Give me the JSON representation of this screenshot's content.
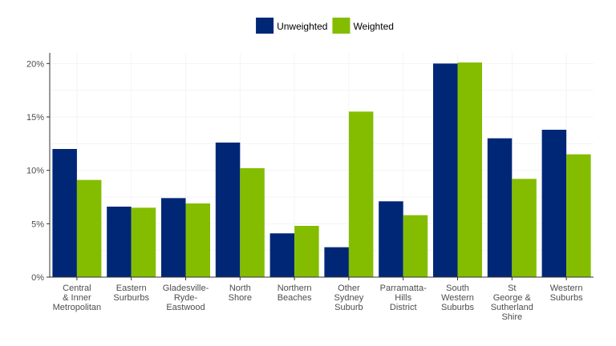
{
  "chart_data": {
    "type": "bar",
    "title": "",
    "xlabel": "",
    "ylabel": "",
    "ylim": [
      0,
      21
    ],
    "yticks": [
      0,
      5,
      10,
      15,
      20
    ],
    "ytick_labels": [
      "0%",
      "5%",
      "10%",
      "15%",
      "20%"
    ],
    "grid": true,
    "legend_position": "top",
    "categories": [
      [
        "Central",
        "& Inner",
        "Metropolitan"
      ],
      [
        "Eastern",
        "Surburbs"
      ],
      [
        "Gladesville-",
        "Ryde-",
        "Eastwood"
      ],
      [
        "North",
        "Shore"
      ],
      [
        "Northern",
        "Beaches"
      ],
      [
        "Other",
        "Sydney",
        "Suburb"
      ],
      [
        "Parramatta-",
        "Hills",
        "District"
      ],
      [
        "South",
        "Western",
        "Suburbs"
      ],
      [
        "St",
        "George &",
        "Sutherland",
        "Shire"
      ],
      [
        "Western",
        "Suburbs"
      ]
    ],
    "series": [
      {
        "name": "Unweighted",
        "color": "#002776",
        "values": [
          12.0,
          6.6,
          7.4,
          12.6,
          4.1,
          2.8,
          7.1,
          20.0,
          13.0,
          13.8
        ]
      },
      {
        "name": "Weighted",
        "color": "#84bd00",
        "values": [
          9.1,
          6.5,
          6.9,
          10.2,
          4.8,
          15.5,
          5.8,
          20.1,
          9.2,
          11.5
        ]
      }
    ]
  }
}
